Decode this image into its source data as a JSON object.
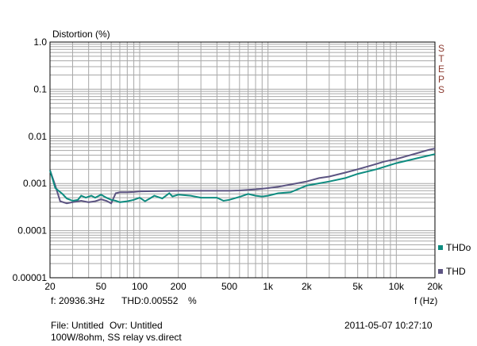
{
  "header": {
    "title": "Distortion (%)",
    "brand_letters": [
      "S",
      "T",
      "E",
      "P",
      "S"
    ]
  },
  "readout": {
    "frequency": "f: 20936.3Hz",
    "thd": "THD:0.00552",
    "unit": "%"
  },
  "footer": {
    "file": "File: Untitled",
    "ovr": "Ovr: Untitled",
    "description": "100W/8ohm, SS relay vs.direct",
    "timestamp": "2011-05-07 10:27:10"
  },
  "colors": {
    "thdo": "#0e8c80",
    "thd": "#5c5482",
    "grid": "#a8a8a8",
    "brand": "#8b3a2f"
  },
  "chart_data": {
    "type": "line",
    "title": "Distortion (%)",
    "xlabel": "f (Hz)",
    "ylabel": "Distortion (%)",
    "x_scale": "log",
    "y_scale": "log",
    "xlim": [
      20,
      20000
    ],
    "ylim": [
      1e-05,
      1
    ],
    "x_ticks": [
      {
        "value": 20,
        "label": "20"
      },
      {
        "value": 50,
        "label": "50"
      },
      {
        "value": 100,
        "label": "100"
      },
      {
        "value": 200,
        "label": "200"
      },
      {
        "value": 500,
        "label": "500"
      },
      {
        "value": 1000,
        "label": "1k"
      },
      {
        "value": 2000,
        "label": "2k"
      },
      {
        "value": 5000,
        "label": "5k"
      },
      {
        "value": 10000,
        "label": "10k"
      },
      {
        "value": 20000,
        "label": "20k"
      }
    ],
    "y_ticks": [
      {
        "value": 1,
        "label": "1.0"
      },
      {
        "value": 0.1,
        "label": "0.1"
      },
      {
        "value": 0.01,
        "label": "0.01"
      },
      {
        "value": 0.001,
        "label": "0.001"
      },
      {
        "value": 0.0001,
        "label": "0.0001"
      },
      {
        "value": 1e-05,
        "label": "0.00001"
      }
    ],
    "grid": true,
    "legend_position": "right",
    "series": [
      {
        "name": "THD",
        "color": "#5c5482",
        "points": [
          [
            20,
            0.0019
          ],
          [
            22,
            0.0009
          ],
          [
            24,
            0.00042
          ],
          [
            27,
            0.00038
          ],
          [
            30,
            0.0004
          ],
          [
            35,
            0.00043
          ],
          [
            40,
            0.0004
          ],
          [
            45,
            0.00042
          ],
          [
            50,
            0.00046
          ],
          [
            55,
            0.00043
          ],
          [
            60,
            0.00038
          ],
          [
            65,
            0.00062
          ],
          [
            70,
            0.00065
          ],
          [
            80,
            0.00065
          ],
          [
            90,
            0.00066
          ],
          [
            100,
            0.00068
          ],
          [
            150,
            0.00069
          ],
          [
            200,
            0.0007
          ],
          [
            300,
            0.0007
          ],
          [
            400,
            0.0007
          ],
          [
            500,
            0.0007
          ],
          [
            600,
            0.00071
          ],
          [
            700,
            0.00073
          ],
          [
            800,
            0.00075
          ],
          [
            1000,
            0.0008
          ],
          [
            1200,
            0.00085
          ],
          [
            1500,
            0.00095
          ],
          [
            2000,
            0.0011
          ],
          [
            2500,
            0.0013
          ],
          [
            3000,
            0.0014
          ],
          [
            4000,
            0.0017
          ],
          [
            5000,
            0.002
          ],
          [
            6000,
            0.0023
          ],
          [
            7000,
            0.0026
          ],
          [
            8000,
            0.0029
          ],
          [
            10000,
            0.0033
          ],
          [
            12000,
            0.0038
          ],
          [
            15000,
            0.0045
          ],
          [
            18000,
            0.0052
          ],
          [
            20000,
            0.0055
          ]
        ]
      },
      {
        "name": "THDo",
        "color": "#0e8c80",
        "points": [
          [
            20,
            0.0019
          ],
          [
            22,
            0.0008
          ],
          [
            25,
            0.0006
          ],
          [
            27,
            0.00048
          ],
          [
            30,
            0.00043
          ],
          [
            33,
            0.00045
          ],
          [
            35,
            0.00055
          ],
          [
            38,
            0.0005
          ],
          [
            42,
            0.00055
          ],
          [
            45,
            0.0005
          ],
          [
            50,
            0.00058
          ],
          [
            55,
            0.0005
          ],
          [
            60,
            0.00045
          ],
          [
            65,
            0.00043
          ],
          [
            70,
            0.0004
          ],
          [
            80,
            0.00042
          ],
          [
            90,
            0.00045
          ],
          [
            100,
            0.0005
          ],
          [
            110,
            0.00042
          ],
          [
            120,
            0.00048
          ],
          [
            130,
            0.00055
          ],
          [
            150,
            0.00048
          ],
          [
            170,
            0.00062
          ],
          [
            180,
            0.00053
          ],
          [
            200,
            0.00058
          ],
          [
            250,
            0.00055
          ],
          [
            300,
            0.0005
          ],
          [
            400,
            0.0005
          ],
          [
            450,
            0.00043
          ],
          [
            500,
            0.00045
          ],
          [
            600,
            0.00052
          ],
          [
            700,
            0.0006
          ],
          [
            800,
            0.00055
          ],
          [
            900,
            0.00053
          ],
          [
            1000,
            0.00055
          ],
          [
            1200,
            0.00062
          ],
          [
            1500,
            0.00065
          ],
          [
            2000,
            0.0009
          ],
          [
            3000,
            0.0011
          ],
          [
            4000,
            0.0013
          ],
          [
            5000,
            0.0016
          ],
          [
            7000,
            0.002
          ],
          [
            10000,
            0.0027
          ],
          [
            15000,
            0.0035
          ],
          [
            20000,
            0.0042
          ]
        ]
      }
    ]
  }
}
